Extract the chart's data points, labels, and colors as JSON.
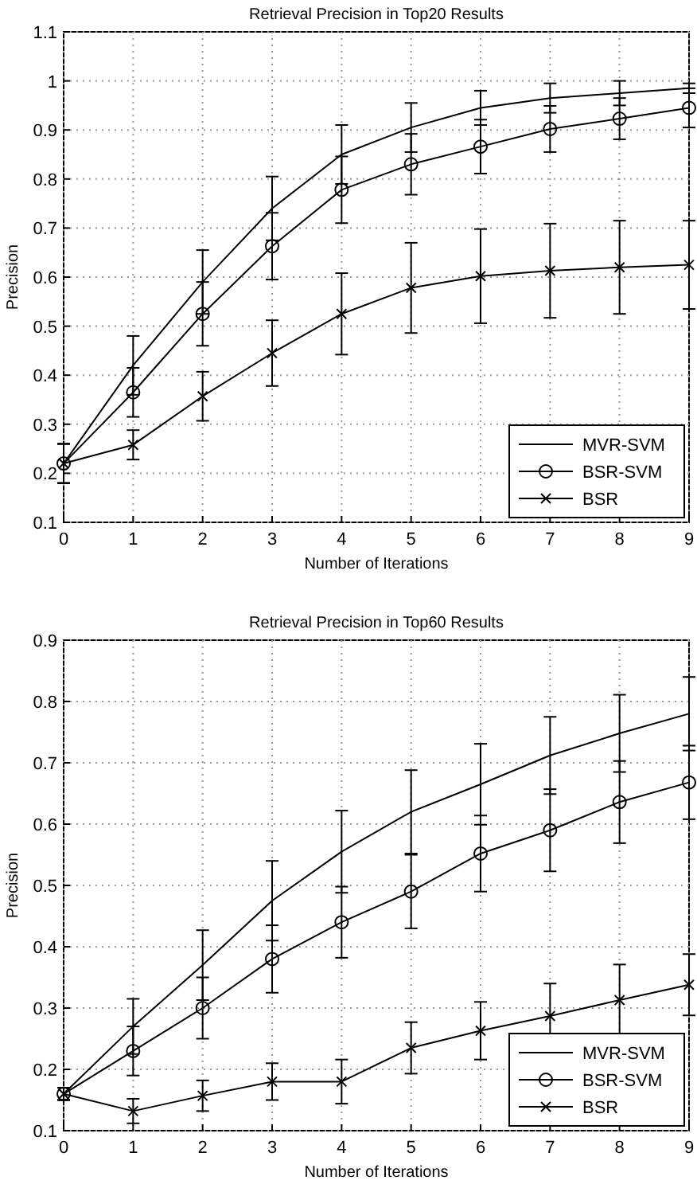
{
  "chart_data": [
    {
      "type": "line",
      "title": "Retrieval Precision in Top20 Results",
      "xlabel": "Number of Iterations",
      "ylabel": "Precision",
      "x": [
        0,
        1,
        2,
        3,
        4,
        5,
        6,
        7,
        8,
        9
      ],
      "xlim": [
        0,
        9
      ],
      "xticks": [
        0,
        1,
        2,
        3,
        4,
        5,
        6,
        7,
        8,
        9
      ],
      "ylim": [
        0.1,
        1.1
      ],
      "yticks": [
        0.1,
        0.2,
        0.3,
        0.4,
        0.5,
        0.6,
        0.7,
        0.8,
        0.9,
        1,
        1.1
      ],
      "grid": true,
      "legend": "bottom right",
      "series": [
        {
          "name": "MVR-SVM",
          "color": "#000000",
          "marker": "none",
          "values": [
            0.22,
            0.42,
            0.59,
            0.74,
            0.85,
            0.905,
            0.945,
            0.965,
            0.975,
            0.985
          ],
          "errors": [
            0.04,
            0.06,
            0.065,
            0.065,
            0.06,
            0.05,
            0.035,
            0.03,
            0.025,
            0.01
          ]
        },
        {
          "name": "BSR-SVM",
          "color": "#000000",
          "marker": "circle",
          "values": [
            0.22,
            0.365,
            0.525,
            0.663,
            0.778,
            0.83,
            0.866,
            0.902,
            0.923,
            0.945
          ],
          "errors": [
            0.04,
            0.05,
            0.065,
            0.068,
            0.068,
            0.062,
            0.055,
            0.047,
            0.042,
            0.04
          ]
        },
        {
          "name": "BSR",
          "color": "#000000",
          "marker": "cross",
          "values": [
            0.22,
            0.258,
            0.357,
            0.445,
            0.525,
            0.578,
            0.602,
            0.613,
            0.62,
            0.625
          ],
          "errors": [
            0.04,
            0.03,
            0.05,
            0.067,
            0.083,
            0.092,
            0.096,
            0.096,
            0.095,
            0.09
          ]
        }
      ]
    },
    {
      "type": "line",
      "title": "Retrieval Precision in Top60 Results",
      "xlabel": "Number of Iterations",
      "ylabel": "Precision",
      "x": [
        0,
        1,
        2,
        3,
        4,
        5,
        6,
        7,
        8,
        9
      ],
      "xlim": [
        0,
        9
      ],
      "xticks": [
        0,
        1,
        2,
        3,
        4,
        5,
        6,
        7,
        8,
        9
      ],
      "ylim": [
        0.1,
        0.9
      ],
      "yticks": [
        0.1,
        0.2,
        0.3,
        0.4,
        0.5,
        0.6,
        0.7,
        0.8,
        0.9
      ],
      "grid": true,
      "legend": "bottom right",
      "series": [
        {
          "name": "MVR-SVM",
          "color": "#000000",
          "marker": "none",
          "values": [
            0.16,
            0.27,
            0.37,
            0.475,
            0.555,
            0.62,
            0.665,
            0.712,
            0.748,
            0.78
          ],
          "errors": [
            0.01,
            0.045,
            0.057,
            0.065,
            0.067,
            0.068,
            0.066,
            0.063,
            0.063,
            0.06
          ]
        },
        {
          "name": "BSR-SVM",
          "color": "#000000",
          "marker": "circle",
          "values": [
            0.16,
            0.23,
            0.3,
            0.38,
            0.44,
            0.49,
            0.552,
            0.59,
            0.636,
            0.668
          ],
          "errors": [
            0.01,
            0.04,
            0.05,
            0.055,
            0.058,
            0.06,
            0.062,
            0.067,
            0.067,
            0.06
          ]
        },
        {
          "name": "BSR",
          "color": "#000000",
          "marker": "cross",
          "values": [
            0.16,
            0.132,
            0.157,
            0.18,
            0.18,
            0.235,
            0.263,
            0.287,
            0.313,
            0.338
          ],
          "errors": [
            0.01,
            0.02,
            0.025,
            0.03,
            0.036,
            0.042,
            0.047,
            0.053,
            0.058,
            0.05
          ]
        }
      ]
    }
  ]
}
